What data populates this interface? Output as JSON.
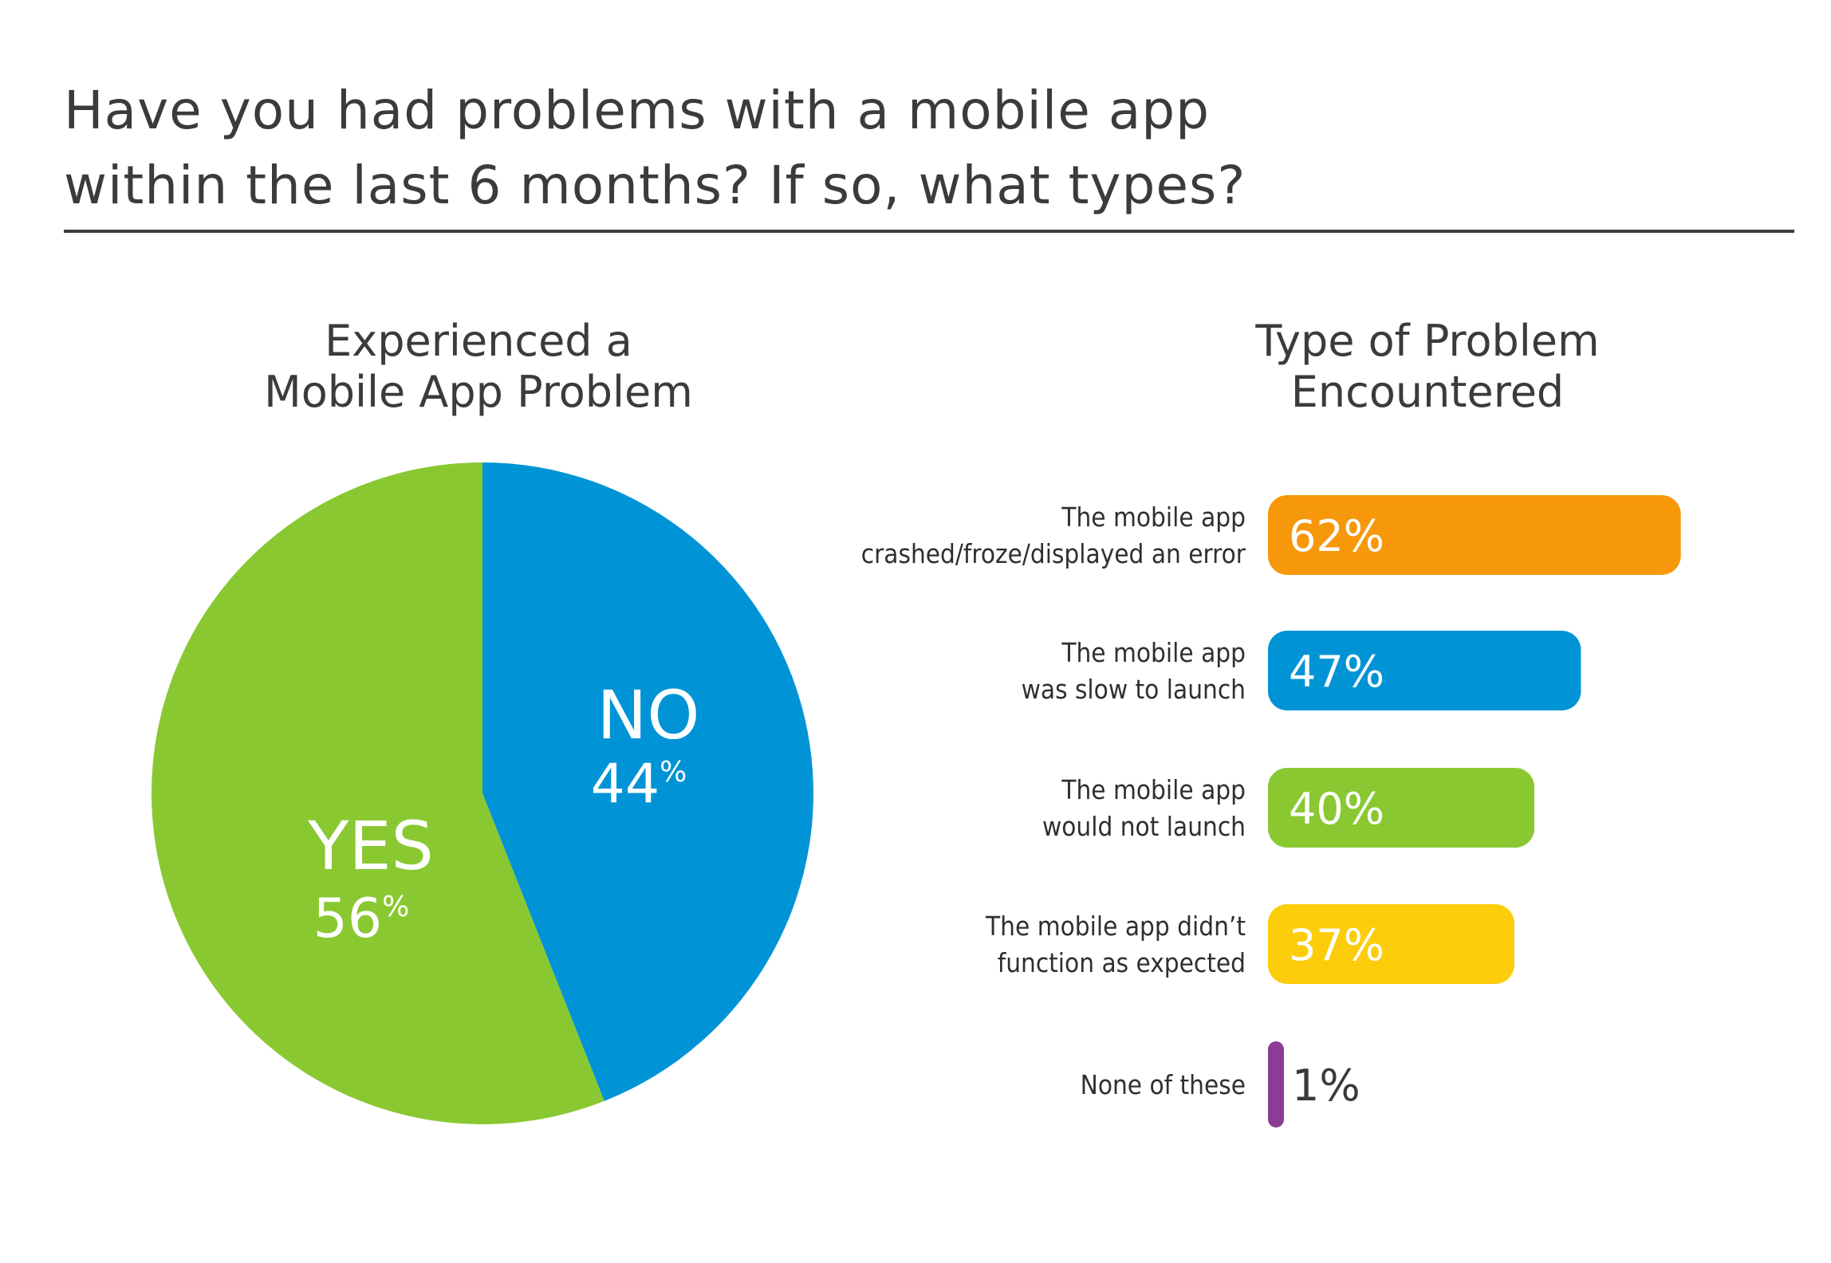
{
  "title_lines": [
    "Have you had problems with a mobile app",
    "within the last 6 months? If so, what types?"
  ],
  "chart_data": [
    {
      "type": "pie",
      "title_lines": [
        "Experienced a",
        "Mobile App Problem"
      ],
      "slices": [
        {
          "label": "NO",
          "value": 44,
          "display_value": "44",
          "unit": "%",
          "color": "#0094d6"
        },
        {
          "label": "YES",
          "value": 56,
          "display_value": "56",
          "unit": "%",
          "color": "#89c831"
        }
      ]
    },
    {
      "type": "bar",
      "orientation": "horizontal",
      "title_lines": [
        "Type of Problem",
        "Encountered"
      ],
      "categories": [
        [
          "The mobile app",
          "crashed/froze/displayed an error"
        ],
        [
          "The mobile app",
          "was slow to launch"
        ],
        [
          "The mobile app",
          "would not launch"
        ],
        [
          "The mobile app didn’t",
          "function as expected"
        ],
        [
          "None of these"
        ]
      ],
      "values": [
        62,
        47,
        40,
        37,
        1
      ],
      "value_labels": [
        "62%",
        "47%",
        "40%",
        "37%",
        "1%"
      ],
      "colors": [
        "#f7970a",
        "#0094d6",
        "#89c831",
        "#fdcc0a",
        "#8b3d94"
      ]
    }
  ]
}
